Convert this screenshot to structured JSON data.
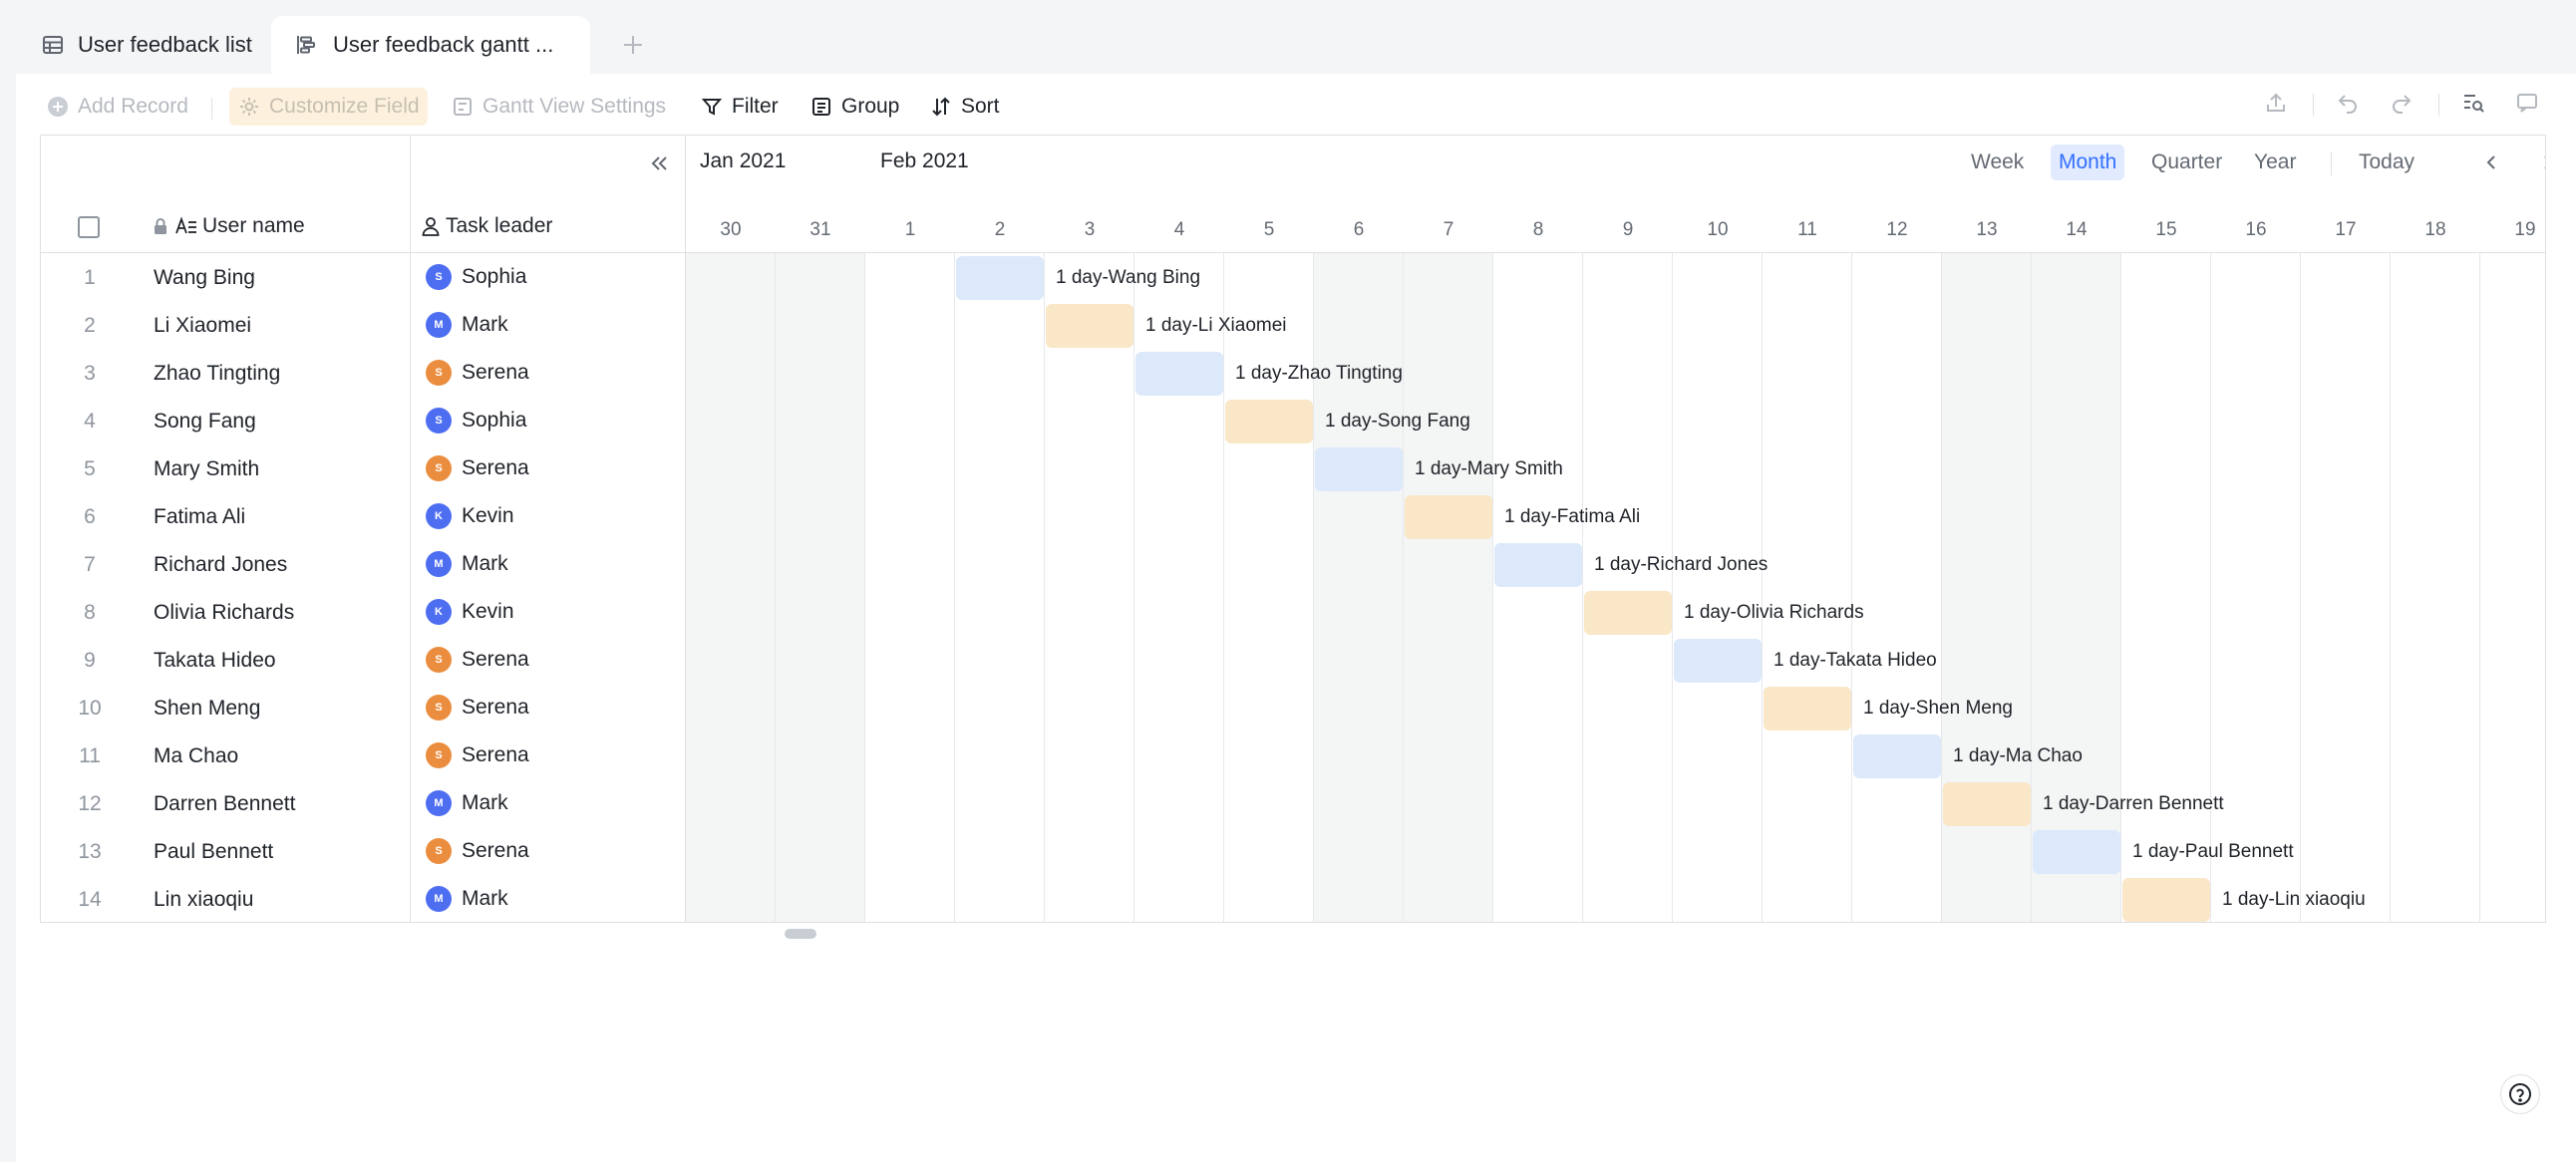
{
  "tabs": [
    {
      "label": "User feedback list",
      "icon": "grid-table-icon"
    },
    {
      "label": "User feedback gantt ...",
      "icon": "gantt-icon"
    }
  ],
  "toolbar": {
    "add_record": "Add Record",
    "customize_field": "Customize Field",
    "gantt_settings": "Gantt View Settings",
    "filter": "Filter",
    "group": "Group",
    "sort": "Sort"
  },
  "columns": {
    "user_name": "User name",
    "task_leader": "Task leader"
  },
  "gantt": {
    "months": [
      "Jan 2021",
      "Feb 2021"
    ],
    "scales": [
      "Week",
      "Month",
      "Quarter",
      "Year"
    ],
    "selected_scale": "Month",
    "today": "Today",
    "days": [
      "30",
      "31",
      "1",
      "2",
      "3",
      "4",
      "5",
      "6",
      "7",
      "8",
      "9",
      "10",
      "11",
      "12",
      "13",
      "14",
      "15",
      "16",
      "17",
      "18",
      "19"
    ],
    "weekend_day_indexes": [
      0,
      1,
      7,
      8,
      14,
      15
    ]
  },
  "colors": {
    "avatar_blue": "#4e6ef2",
    "avatar_orange": "#eb8d3f",
    "bar_blue": "#dbe9fb",
    "bar_orange": "#f9e7c7",
    "accent": "#3370ff"
  },
  "rows": [
    {
      "num": "1",
      "name": "Wang Bing",
      "leader": "Sophia",
      "initial": "S",
      "color": "blue",
      "bar_label": "1 day-Wang Bing",
      "bar_color": "blue",
      "day_index": 3
    },
    {
      "num": "2",
      "name": "Li Xiaomei",
      "leader": "Mark",
      "initial": "M",
      "color": "blue",
      "bar_label": "1 day-Li Xiaomei",
      "bar_color": "orange",
      "day_index": 4
    },
    {
      "num": "3",
      "name": "Zhao Tingting",
      "leader": "Serena",
      "initial": "S",
      "color": "orange",
      "bar_label": "1 day-Zhao Tingting",
      "bar_color": "blue",
      "day_index": 5
    },
    {
      "num": "4",
      "name": "Song Fang",
      "leader": "Sophia",
      "initial": "S",
      "color": "blue",
      "bar_label": "1 day-Song Fang",
      "bar_color": "orange",
      "day_index": 6
    },
    {
      "num": "5",
      "name": "Mary Smith",
      "leader": "Serena",
      "initial": "S",
      "color": "orange",
      "bar_label": "1 day-Mary Smith",
      "bar_color": "blue",
      "day_index": 7
    },
    {
      "num": "6",
      "name": "Fatima Ali",
      "leader": "Kevin",
      "initial": "K",
      "color": "blue",
      "bar_label": "1 day-Fatima Ali",
      "bar_color": "orange",
      "day_index": 8
    },
    {
      "num": "7",
      "name": "Richard Jones",
      "leader": "Mark",
      "initial": "M",
      "color": "blue",
      "bar_label": "1 day-Richard Jones",
      "bar_color": "blue",
      "day_index": 9
    },
    {
      "num": "8",
      "name": "Olivia Richards",
      "leader": "Kevin",
      "initial": "K",
      "color": "blue",
      "bar_label": "1 day-Olivia Richards",
      "bar_color": "orange",
      "day_index": 10
    },
    {
      "num": "9",
      "name": "Takata Hideo",
      "leader": "Serena",
      "initial": "S",
      "color": "orange",
      "bar_label": "1 day-Takata Hideo",
      "bar_color": "blue",
      "day_index": 11
    },
    {
      "num": "10",
      "name": "Shen Meng",
      "leader": "Serena",
      "initial": "S",
      "color": "orange",
      "bar_label": "1 day-Shen Meng",
      "bar_color": "orange",
      "day_index": 12
    },
    {
      "num": "11",
      "name": "Ma Chao",
      "leader": "Serena",
      "initial": "S",
      "color": "orange",
      "bar_label": "1 day-Ma Chao",
      "bar_color": "blue",
      "day_index": 13
    },
    {
      "num": "12",
      "name": "Darren Bennett",
      "leader": "Mark",
      "initial": "M",
      "color": "blue",
      "bar_label": "1 day-Darren Bennett",
      "bar_color": "orange",
      "day_index": 14
    },
    {
      "num": "13",
      "name": "Paul Bennett",
      "leader": "Serena",
      "initial": "S",
      "color": "orange",
      "bar_label": "1 day-Paul Bennett",
      "bar_color": "blue",
      "day_index": 15
    },
    {
      "num": "14",
      "name": "Lin xiaoqiu",
      "leader": "Mark",
      "initial": "M",
      "color": "blue",
      "bar_label": "1 day-Lin xiaoqiu",
      "bar_color": "orange",
      "day_index": 16
    }
  ]
}
